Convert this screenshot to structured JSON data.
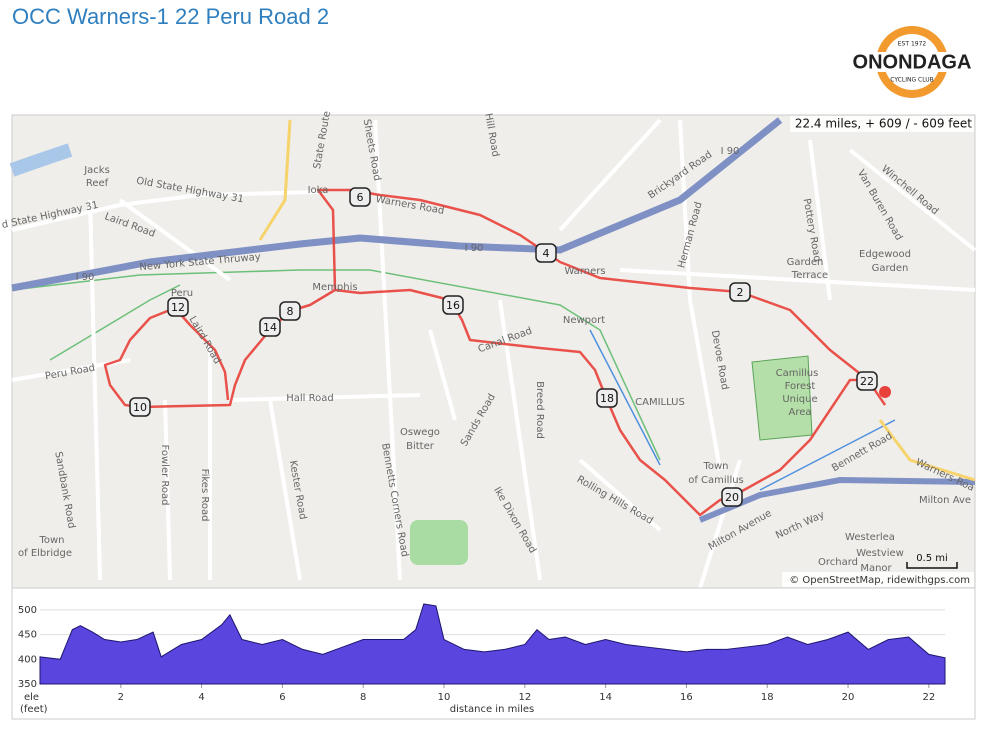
{
  "header": {
    "title": "OCC Warners-1 22 Peru Road 2",
    "logo": {
      "name": "ONONDAGA",
      "sub": "CYCLING CLUB",
      "est": "EST 1972"
    }
  },
  "map": {
    "summary": "22.4 miles, + 609 / - 609 feet",
    "attribution": "© OpenStreetMap, ridewithgps.com",
    "scale": "0.5 mi",
    "markers": [
      "2",
      "4",
      "6",
      "8",
      "10",
      "12",
      "14",
      "16",
      "18",
      "20",
      "22"
    ],
    "labels": [
      "Jacks",
      "Reef",
      "Old State Highway 31",
      "d State Highway 31",
      "Laird Road",
      "New York State Thruway",
      "I 90",
      "I 90",
      "I 90",
      "Ioka",
      "Warners Road",
      "Memphis",
      "Peru",
      "Laird Road",
      "Peru Road",
      "Hall Road",
      "Canal Road",
      "Sands Road",
      "Breed Road",
      "Newport",
      "CAMILLUS",
      "Herman Road",
      "Devoe Road",
      "Warners",
      "Oswego",
      "Bitter",
      "Fowler Road",
      "Fikes Road",
      "Kester Road",
      "Bennetts Corners Road",
      "Ike Dixon Road",
      "Rolling Hills Road",
      "Sandbank Road",
      "Town",
      "of Elbridge",
      "Town",
      "of Camillus",
      "Garden",
      "Terrace",
      "Edgewood",
      "Garden",
      "Van Buren Road",
      "Winchell Road",
      "Pottery Road",
      "Brickyard Road",
      "Camillus",
      "Forest",
      "Unique",
      "Area",
      "Westerlea",
      "Orchard",
      "Westview",
      "Manor",
      "North Way",
      "Milton Avenue",
      "Bennett Road",
      "Warners-Roa",
      "Milton Ave",
      "Sheets Road",
      "Hill Road",
      "State Route"
    ]
  },
  "chart_data": {
    "type": "area",
    "x_label": "distance in miles",
    "y_label": "ele",
    "y_unit": "(feet)",
    "x": [
      0,
      0.5,
      0.8,
      1.0,
      1.3,
      1.6,
      2.0,
      2.4,
      2.8,
      3.0,
      3.5,
      4.0,
      4.5,
      4.7,
      5.0,
      5.5,
      6.0,
      6.5,
      7.0,
      7.5,
      8.0,
      8.5,
      9.0,
      9.3,
      9.5,
      9.8,
      10.0,
      10.5,
      11.0,
      11.5,
      12.0,
      12.3,
      12.6,
      13.0,
      13.5,
      14.0,
      14.5,
      15.0,
      15.5,
      16.0,
      16.5,
      17.0,
      17.5,
      18.0,
      18.5,
      19.0,
      19.5,
      20.0,
      20.5,
      21.0,
      21.5,
      22.0,
      22.4
    ],
    "values": [
      405,
      400,
      460,
      468,
      455,
      440,
      435,
      440,
      455,
      405,
      430,
      440,
      470,
      490,
      440,
      430,
      440,
      420,
      410,
      425,
      440,
      440,
      440,
      460,
      512,
      508,
      440,
      420,
      415,
      420,
      430,
      460,
      440,
      445,
      430,
      440,
      430,
      425,
      420,
      415,
      420,
      420,
      425,
      430,
      445,
      430,
      440,
      455,
      420,
      440,
      445,
      410,
      403
    ],
    "color": "#5a45de",
    "xlim": [
      0,
      22.4
    ],
    "ylim": [
      350,
      520
    ],
    "xticks": [
      2,
      4,
      6,
      8,
      10,
      12,
      14,
      16,
      18,
      20,
      22
    ],
    "yticks": [
      350,
      400,
      450,
      500
    ],
    "grid": true
  }
}
